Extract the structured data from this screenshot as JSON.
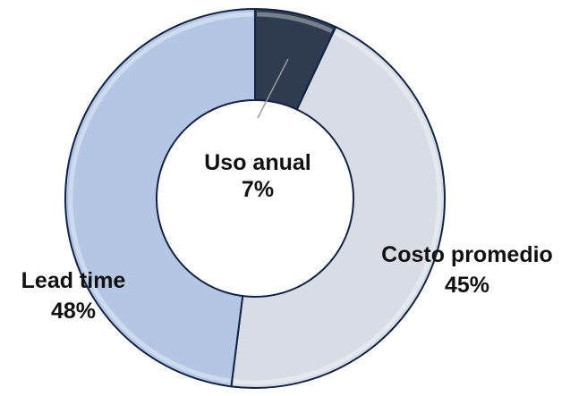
{
  "chart_data": {
    "type": "pie",
    "style": "doughnut",
    "title": "",
    "categories": [
      "Uso anual",
      "Costo promedio",
      "Lead time"
    ],
    "values": [
      7,
      45,
      48
    ],
    "value_labels": [
      "7%",
      "45%",
      "48%"
    ],
    "colors": [
      "#2f3b4e",
      "#d8dde5",
      "#b4c6e4"
    ],
    "outline_color": "#0f2348",
    "legend": "none",
    "grid": false
  }
}
